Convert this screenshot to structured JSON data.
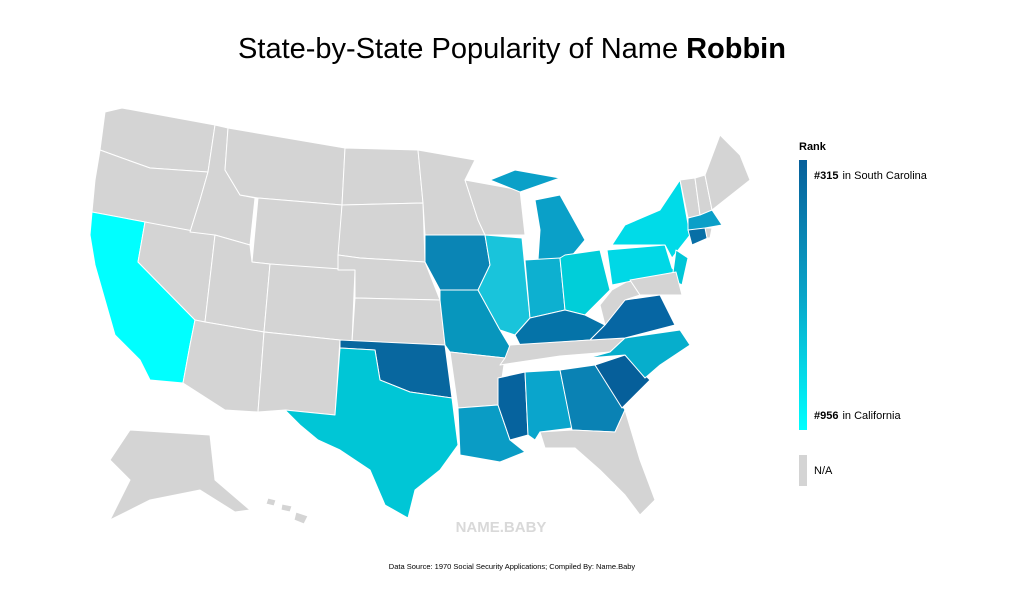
{
  "title": {
    "prefix": "State-by-State Popularity of Name",
    "name": "Robbin"
  },
  "legend": {
    "title": "Rank",
    "top": {
      "rank": "#315",
      "state": "in South Carolina"
    },
    "bottom": {
      "rank": "#956",
      "state": "in California"
    },
    "na": "N/A"
  },
  "watermark": "NAME.BABY",
  "footer": "Data Source: 1970 Social Security Applications; Compiled By: Name.Baby"
}
